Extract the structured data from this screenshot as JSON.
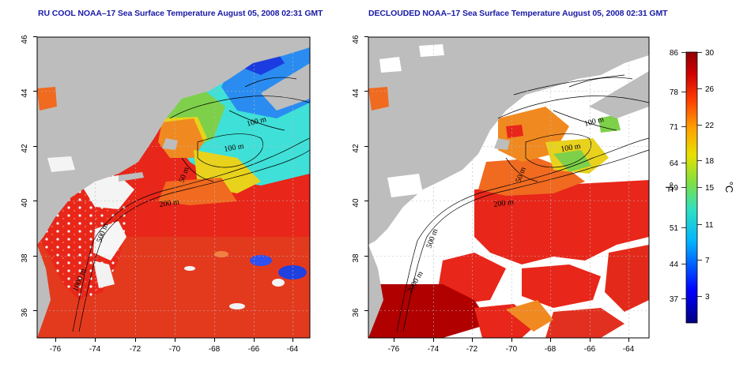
{
  "panels": [
    {
      "title": "RU COOL NOAA–17 Sea Surface Temperature August 05, 2008 02:31 GMT",
      "lat_ticks": [
        "46",
        "44",
        "42",
        "40",
        "38",
        "36"
      ],
      "lon_ticks": [
        "-76",
        "-74",
        "-72",
        "-70",
        "-68",
        "-66",
        "-64"
      ],
      "contour_labels": [
        "100 m",
        "100 m",
        "50 m",
        "200 m",
        "500 m",
        "1000 m"
      ]
    },
    {
      "title": "DECLOUDED NOAA–17 Sea Surface Temperature August 05, 2008 02:31 GMT",
      "lat_ticks": [
        "46",
        "44",
        "42",
        "40",
        "38",
        "36"
      ],
      "lon_ticks": [
        "-76",
        "-74",
        "-72",
        "-70",
        "-68",
        "-66",
        "-64"
      ],
      "contour_labels": [
        "100 m",
        "100 m",
        "50 m",
        "200 m",
        "500 m",
        "2000 m"
      ]
    }
  ],
  "colorbar": {
    "fahrenheit_ticks": [
      "86",
      "78",
      "71",
      "64",
      "59",
      "51",
      "44",
      "37"
    ],
    "celsius_ticks": [
      "30",
      "26",
      "22",
      "18",
      "15",
      "11",
      "7",
      "3"
    ],
    "left_unit": "°F",
    "right_unit": "°C"
  },
  "colors": {
    "land": "#bdbdbd",
    "cloud": "#ffffff",
    "warm": "#e8261a",
    "hot": "#b00000",
    "orange": "#f08a20",
    "yellow": "#e8d21c",
    "green": "#7ed04a",
    "cyan": "#3fe0d8",
    "blue": "#1a5cf0",
    "title": "#1a1aa6"
  }
}
